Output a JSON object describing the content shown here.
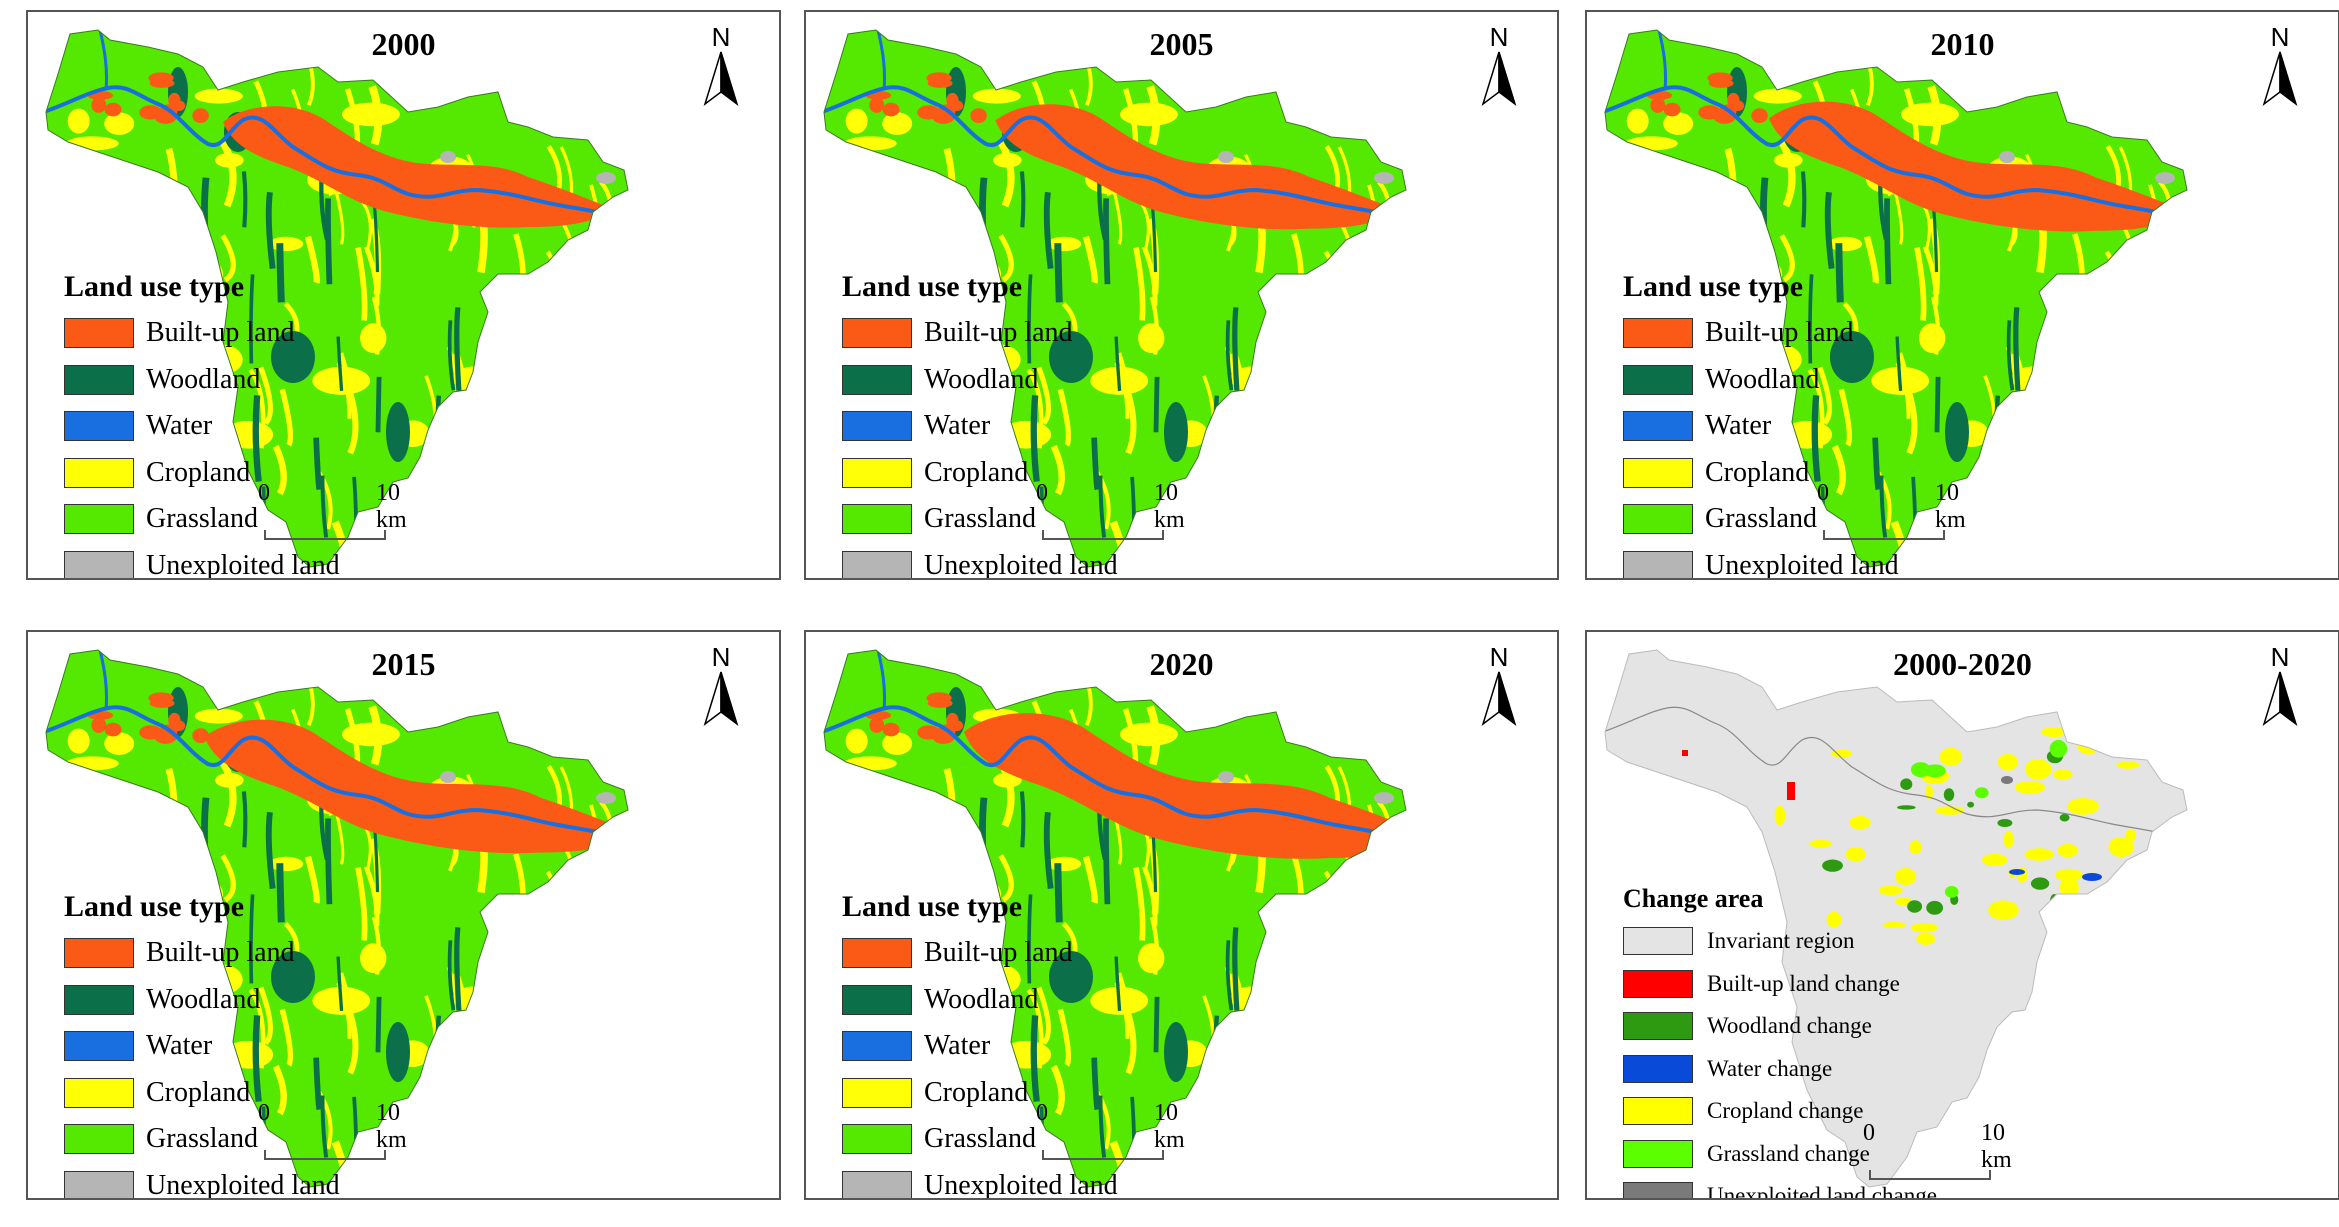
{
  "colors": {
    "built_up": "#fb5a16",
    "woodland": "#0b6f4a",
    "water": "#1a6fe0",
    "cropland": "#ffff08",
    "grassland": "#55e800",
    "unexploited": "#b5b5b5",
    "invariant": "#e4e4e4",
    "built_up_change": "#ff0000",
    "woodland_change": "#2e9a12",
    "water_change": "#0a4ad8",
    "cropland_change": "#ffff00",
    "grassland_change": "#5cff00",
    "unexploited_change": "#7a7a7a"
  },
  "north_label": "N",
  "scale": {
    "zero": "0",
    "distance": "10 km"
  },
  "legend_land": {
    "title": "Land use type",
    "items": [
      {
        "label": "Built-up land",
        "color_key": "built_up"
      },
      {
        "label": "Woodland",
        "color_key": "woodland"
      },
      {
        "label": "Water",
        "color_key": "water"
      },
      {
        "label": "Cropland",
        "color_key": "cropland"
      },
      {
        "label": "Grassland",
        "color_key": "grassland"
      },
      {
        "label": "Unexploited land",
        "color_key": "unexploited"
      }
    ]
  },
  "legend_change": {
    "title": "Change area",
    "items": [
      {
        "label": "Invariant region",
        "color_key": "invariant"
      },
      {
        "label": "Built-up land change",
        "color_key": "built_up_change"
      },
      {
        "label": "Woodland change",
        "color_key": "woodland_change"
      },
      {
        "label": "Water change",
        "color_key": "water_change"
      },
      {
        "label": "Cropland change",
        "color_key": "cropland_change"
      },
      {
        "label": "Grassland change",
        "color_key": "grassland_change"
      },
      {
        "label": "Unexploited land change",
        "color_key": "unexploited_change"
      }
    ]
  },
  "panels": [
    {
      "title": "2000",
      "kind": "land",
      "builtup_extent": 1.0
    },
    {
      "title": "2005",
      "kind": "land",
      "builtup_extent": 1.03
    },
    {
      "title": "2010",
      "kind": "land",
      "builtup_extent": 1.07
    },
    {
      "title": "2015",
      "kind": "land",
      "builtup_extent": 1.1
    },
    {
      "title": "2020",
      "kind": "land",
      "builtup_extent": 1.2
    },
    {
      "title": "2000-2020",
      "kind": "change"
    }
  ]
}
